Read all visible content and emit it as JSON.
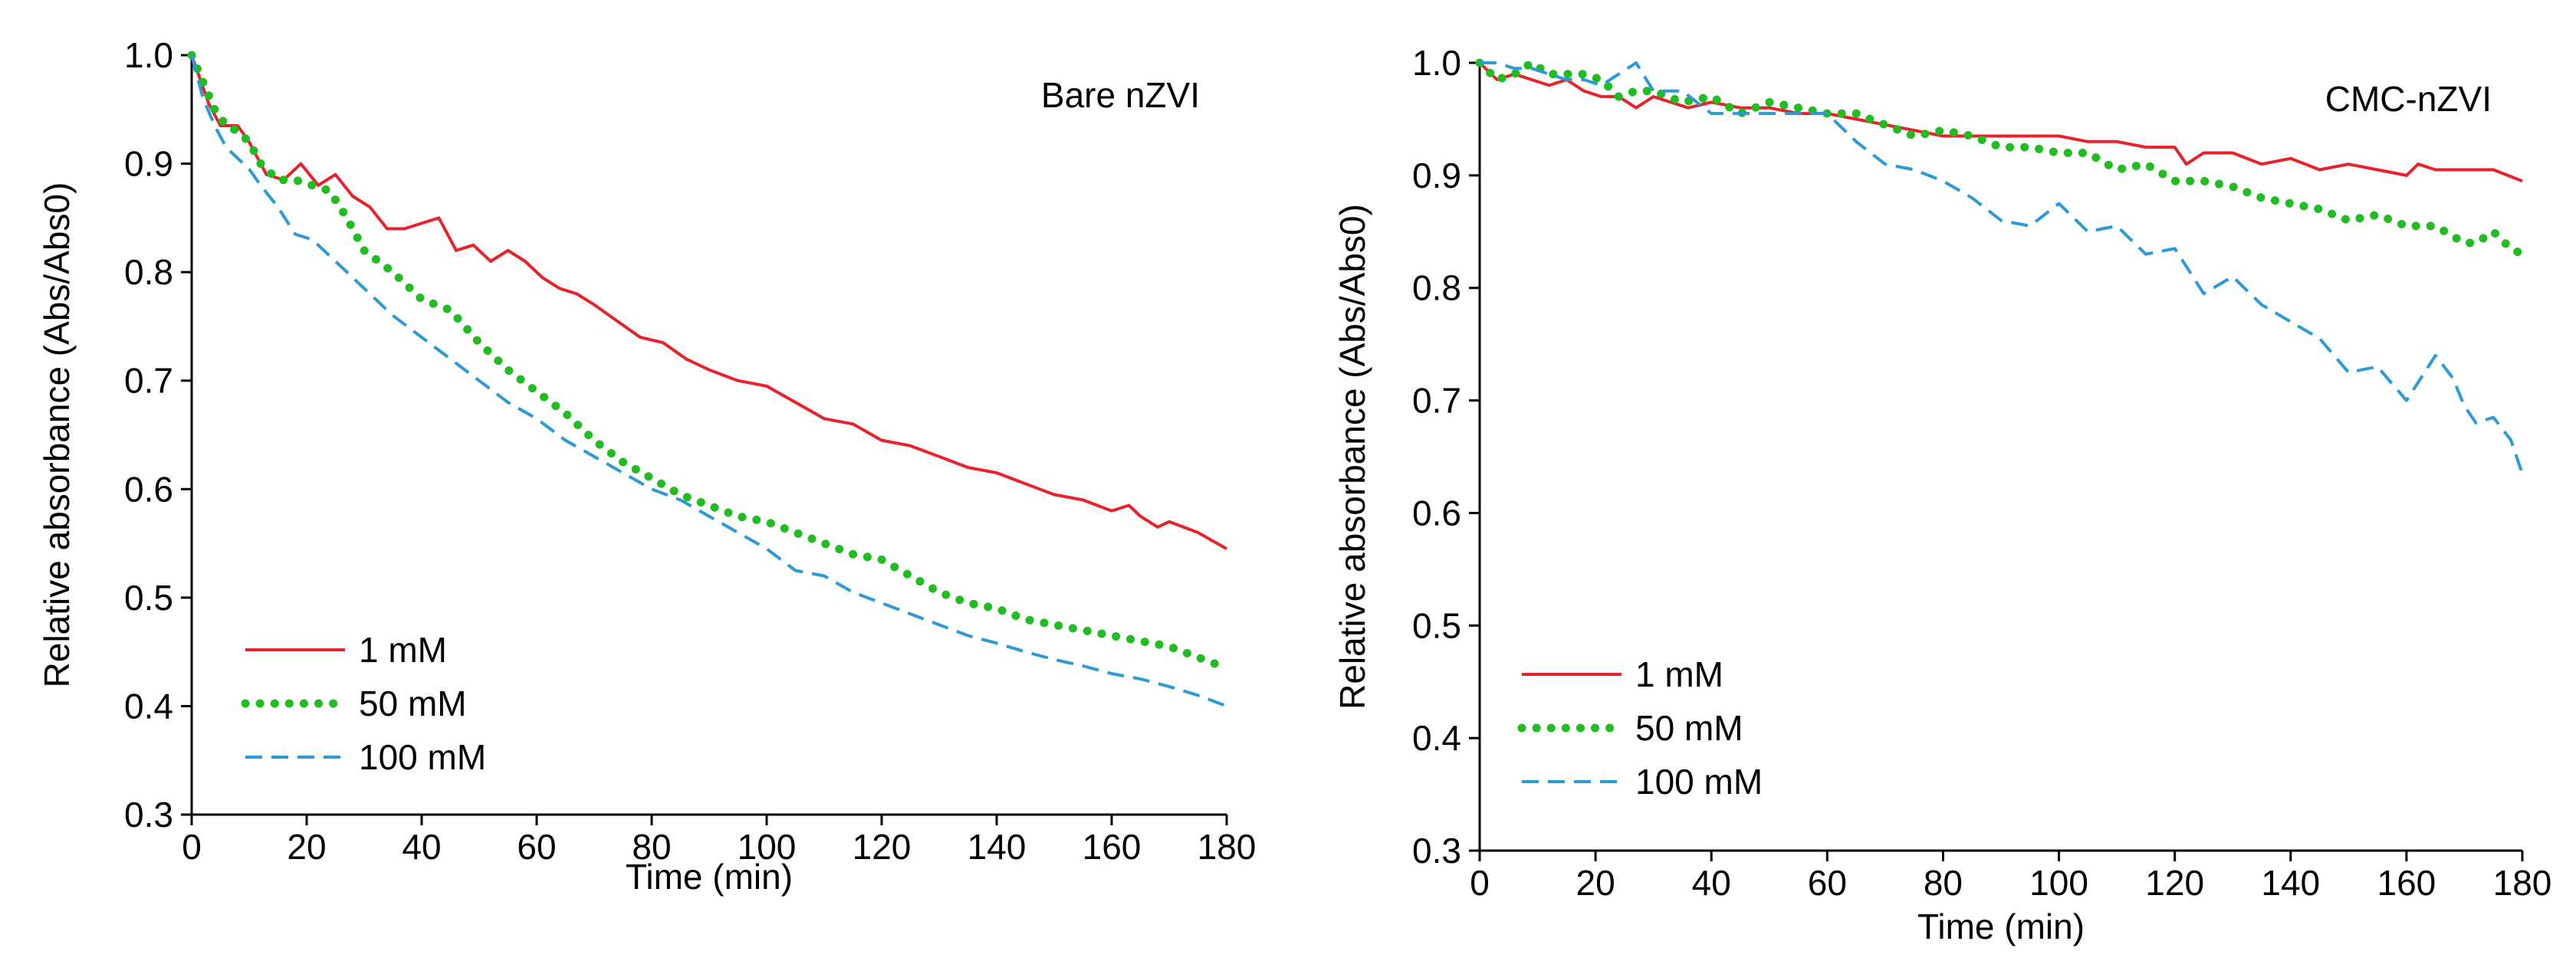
{
  "chart_data": [
    {
      "type": "line",
      "title": "Bare nZVI",
      "xlabel": "Time (min)",
      "ylabel": "Relative absorbance (Abs/Abs0)",
      "xlim": [
        0,
        180
      ],
      "ylim": [
        0.3,
        1.0
      ],
      "xticks": [
        "0",
        "20",
        "40",
        "60",
        "80",
        "100",
        "120",
        "140",
        "160",
        "180"
      ],
      "yticks": [
        "0.3",
        "0.4",
        "0.5",
        "0.6",
        "0.7",
        "0.8",
        "0.9",
        "1.0"
      ],
      "legend_position": "bottom-left",
      "grid": false,
      "series": [
        {
          "name": "1 mM",
          "color": "#e8222a",
          "style": "solid",
          "x": [
            0,
            3,
            5,
            8,
            10,
            13,
            16,
            19,
            22,
            25,
            28,
            31,
            34,
            37,
            40,
            43,
            46,
            49,
            52,
            55,
            58,
            61,
            64,
            67,
            70,
            74,
            78,
            82,
            86,
            90,
            95,
            100,
            105,
            110,
            115,
            120,
            125,
            130,
            135,
            140,
            145,
            150,
            155,
            160,
            163,
            165,
            168,
            170,
            175,
            180
          ],
          "y": [
            1.0,
            0.955,
            0.935,
            0.935,
            0.92,
            0.89,
            0.885,
            0.9,
            0.88,
            0.89,
            0.87,
            0.86,
            0.84,
            0.84,
            0.845,
            0.85,
            0.82,
            0.825,
            0.81,
            0.82,
            0.81,
            0.795,
            0.785,
            0.78,
            0.77,
            0.755,
            0.74,
            0.735,
            0.72,
            0.71,
            0.7,
            0.695,
            0.68,
            0.665,
            0.66,
            0.645,
            0.64,
            0.63,
            0.62,
            0.615,
            0.605,
            0.595,
            0.59,
            0.58,
            0.585,
            0.575,
            0.565,
            0.57,
            0.56,
            0.545
          ]
        },
        {
          "name": "50 mM",
          "color": "#1fbd1f",
          "style": "dotted",
          "x": [
            0,
            2,
            4,
            6,
            8,
            10,
            12,
            15,
            18,
            21,
            24,
            27,
            30,
            35,
            40,
            45,
            50,
            55,
            60,
            65,
            70,
            75,
            80,
            85,
            90,
            95,
            100,
            105,
            110,
            115,
            120,
            125,
            130,
            135,
            140,
            145,
            150,
            155,
            160,
            165,
            170,
            175,
            180
          ],
          "y": [
            1.0,
            0.975,
            0.95,
            0.935,
            0.93,
            0.92,
            0.9,
            0.885,
            0.885,
            0.88,
            0.875,
            0.85,
            0.82,
            0.8,
            0.775,
            0.765,
            0.735,
            0.71,
            0.69,
            0.67,
            0.645,
            0.625,
            0.61,
            0.595,
            0.585,
            0.575,
            0.57,
            0.56,
            0.55,
            0.54,
            0.535,
            0.52,
            0.505,
            0.495,
            0.49,
            0.48,
            0.475,
            0.47,
            0.465,
            0.46,
            0.455,
            0.445,
            0.435
          ]
        },
        {
          "name": "100 mM",
          "color": "#2b9ad6",
          "style": "dashed",
          "x": [
            0,
            2,
            4,
            6,
            8,
            10,
            12,
            15,
            18,
            21,
            24,
            27,
            30,
            35,
            40,
            45,
            50,
            55,
            60,
            65,
            70,
            75,
            80,
            85,
            90,
            95,
            100,
            105,
            110,
            115,
            120,
            125,
            130,
            135,
            140,
            145,
            150,
            155,
            160,
            165,
            170,
            175,
            180
          ],
          "y": [
            1.0,
            0.96,
            0.935,
            0.915,
            0.905,
            0.895,
            0.88,
            0.86,
            0.835,
            0.83,
            0.815,
            0.8,
            0.785,
            0.76,
            0.74,
            0.72,
            0.7,
            0.68,
            0.665,
            0.645,
            0.63,
            0.615,
            0.6,
            0.59,
            0.575,
            0.56,
            0.545,
            0.525,
            0.52,
            0.505,
            0.495,
            0.485,
            0.475,
            0.465,
            0.458,
            0.45,
            0.443,
            0.437,
            0.43,
            0.425,
            0.418,
            0.41,
            0.4
          ]
        }
      ]
    },
    {
      "type": "line",
      "title": "CMC-nZVI",
      "xlabel": "Time (min)",
      "ylabel": "Relative absorbance (Abs/Abs0)",
      "xlim": [
        0,
        180
      ],
      "ylim": [
        0.3,
        1.0
      ],
      "xticks": [
        "0",
        "20",
        "40",
        "60",
        "80",
        "100",
        "120",
        "140",
        "160",
        "180"
      ],
      "yticks": [
        "0.3",
        "0.4",
        "0.5",
        "0.6",
        "0.7",
        "0.8",
        "0.9",
        "1.0"
      ],
      "legend_position": "bottom-left",
      "grid": false,
      "series": [
        {
          "name": "1 mM",
          "color": "#e8222a",
          "style": "solid",
          "x": [
            0,
            3,
            6,
            9,
            12,
            15,
            18,
            21,
            24,
            27,
            30,
            33,
            36,
            40,
            45,
            50,
            55,
            60,
            65,
            70,
            75,
            80,
            85,
            90,
            95,
            100,
            105,
            110,
            115,
            120,
            122,
            125,
            130,
            135,
            140,
            145,
            150,
            155,
            160,
            162,
            165,
            170,
            175,
            180
          ],
          "y": [
            1.0,
            0.985,
            0.99,
            0.985,
            0.98,
            0.985,
            0.975,
            0.97,
            0.97,
            0.96,
            0.97,
            0.965,
            0.96,
            0.965,
            0.96,
            0.96,
            0.955,
            0.955,
            0.95,
            0.945,
            0.94,
            0.935,
            0.935,
            0.935,
            0.935,
            0.935,
            0.93,
            0.93,
            0.925,
            0.925,
            0.91,
            0.92,
            0.92,
            0.91,
            0.915,
            0.905,
            0.91,
            0.905,
            0.9,
            0.91,
            0.905,
            0.905,
            0.905,
            0.895
          ]
        },
        {
          "name": "50 mM",
          "color": "#1fbd1f",
          "style": "dotted",
          "x": [
            0,
            3,
            6,
            9,
            12,
            15,
            18,
            21,
            24,
            27,
            30,
            35,
            40,
            45,
            50,
            55,
            60,
            65,
            70,
            75,
            80,
            85,
            90,
            95,
            100,
            105,
            110,
            115,
            120,
            125,
            130,
            135,
            140,
            145,
            150,
            155,
            160,
            165,
            170,
            172,
            175,
            178,
            180
          ],
          "y": [
            1.0,
            0.985,
            0.99,
            1.0,
            0.99,
            0.99,
            0.99,
            0.985,
            0.97,
            0.975,
            0.975,
            0.965,
            0.97,
            0.955,
            0.965,
            0.96,
            0.955,
            0.955,
            0.945,
            0.935,
            0.94,
            0.935,
            0.925,
            0.925,
            0.92,
            0.92,
            0.905,
            0.91,
            0.895,
            0.895,
            0.89,
            0.88,
            0.875,
            0.87,
            0.86,
            0.865,
            0.855,
            0.855,
            0.84,
            0.84,
            0.85,
            0.835,
            0.83
          ]
        },
        {
          "name": "100 mM",
          "color": "#2b9ad6",
          "style": "dashed",
          "x": [
            0,
            3,
            6,
            9,
            12,
            15,
            18,
            21,
            24,
            27,
            30,
            35,
            40,
            45,
            50,
            55,
            60,
            65,
            70,
            75,
            80,
            85,
            90,
            95,
            100,
            105,
            110,
            115,
            120,
            125,
            130,
            135,
            140,
            145,
            150,
            155,
            160,
            165,
            168,
            170,
            172,
            175,
            178,
            180
          ],
          "y": [
            1.0,
            1.0,
            0.995,
            0.995,
            0.99,
            0.985,
            0.985,
            0.98,
            0.99,
            1.0,
            0.975,
            0.975,
            0.955,
            0.955,
            0.955,
            0.955,
            0.955,
            0.93,
            0.91,
            0.905,
            0.895,
            0.88,
            0.86,
            0.855,
            0.875,
            0.85,
            0.855,
            0.83,
            0.835,
            0.795,
            0.81,
            0.785,
            0.77,
            0.755,
            0.725,
            0.73,
            0.7,
            0.74,
            0.72,
            0.695,
            0.68,
            0.685,
            0.665,
            0.635
          ]
        }
      ]
    }
  ]
}
